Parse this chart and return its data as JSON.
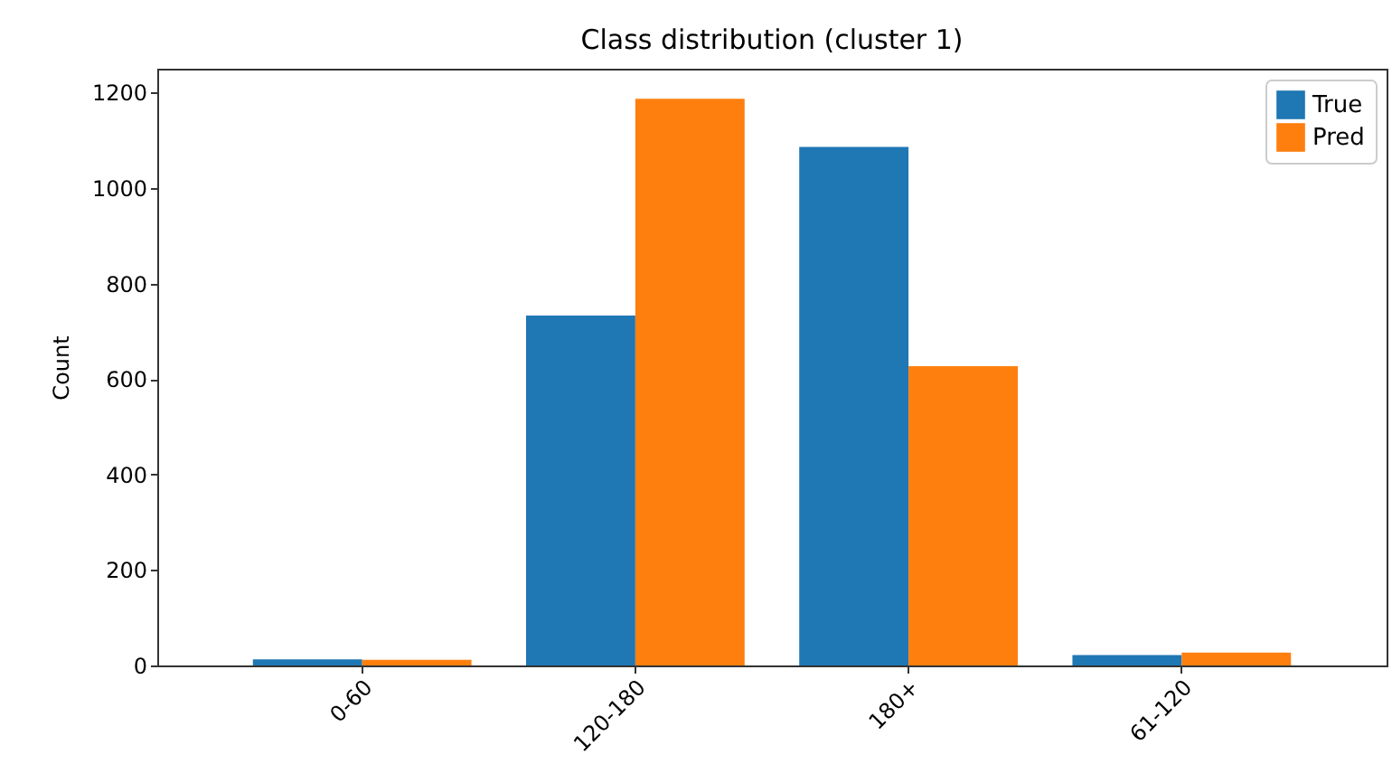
{
  "chart_data": {
    "type": "bar",
    "title": "Class distribution (cluster 1)",
    "ylabel": "Count",
    "categories": [
      "0-60",
      "120-180",
      "180+",
      "61-120"
    ],
    "series": [
      {
        "name": "True",
        "color": "#1f77b4",
        "values": [
          13,
          733,
          1086,
          22
        ]
      },
      {
        "name": "Pred",
        "color": "#ff7f0e",
        "values": [
          12,
          1187,
          627,
          27
        ]
      }
    ],
    "ylim": [
      0,
      1250
    ],
    "yticks": [
      0,
      200,
      400,
      600,
      800,
      1000,
      1200
    ],
    "grid": false,
    "legend": "top right"
  }
}
